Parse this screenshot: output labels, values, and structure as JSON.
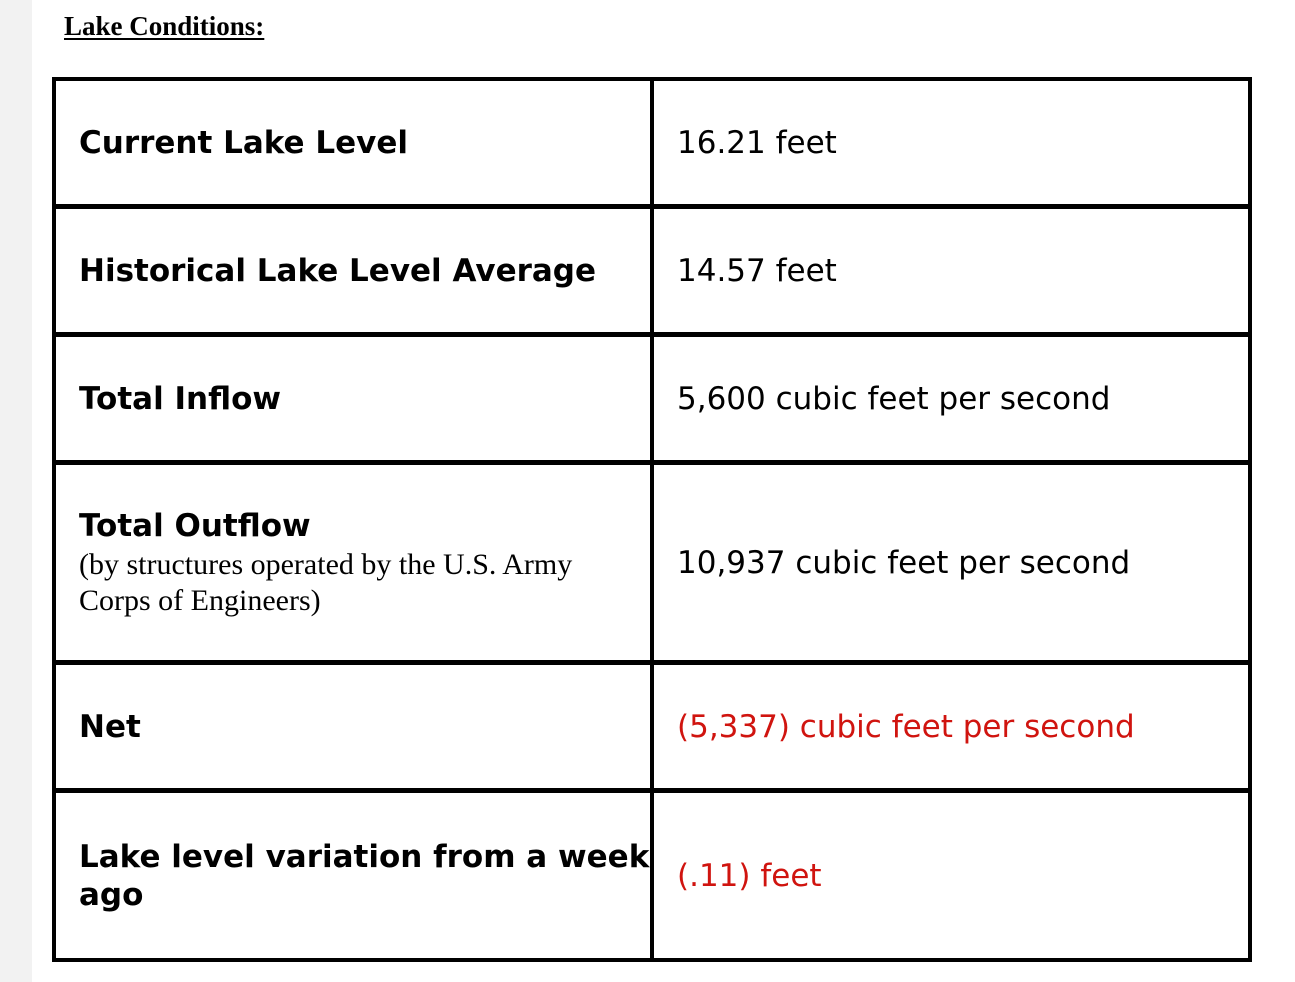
{
  "heading": "Lake Conditions:",
  "rows": [
    {
      "label": "Current Lake Level",
      "value": "16.21 feet"
    },
    {
      "label": "Historical Lake Level Average",
      "value": "14.57 feet"
    },
    {
      "label": "Total Inflow",
      "value": "5,600 cubic feet per second"
    },
    {
      "label": "Total Outflow",
      "note": "(by structures operated by the U.S. Army Corps of Engineers)",
      "value": "10,937 cubic feet per second"
    },
    {
      "label": "Net",
      "value": "(5,337) cubic feet per second"
    },
    {
      "label": "Lake level variation from a week ago",
      "value": "(.11) feet"
    }
  ],
  "colors": {
    "negative_value": "#d0140f",
    "text": "#000000",
    "border": "#000000"
  }
}
